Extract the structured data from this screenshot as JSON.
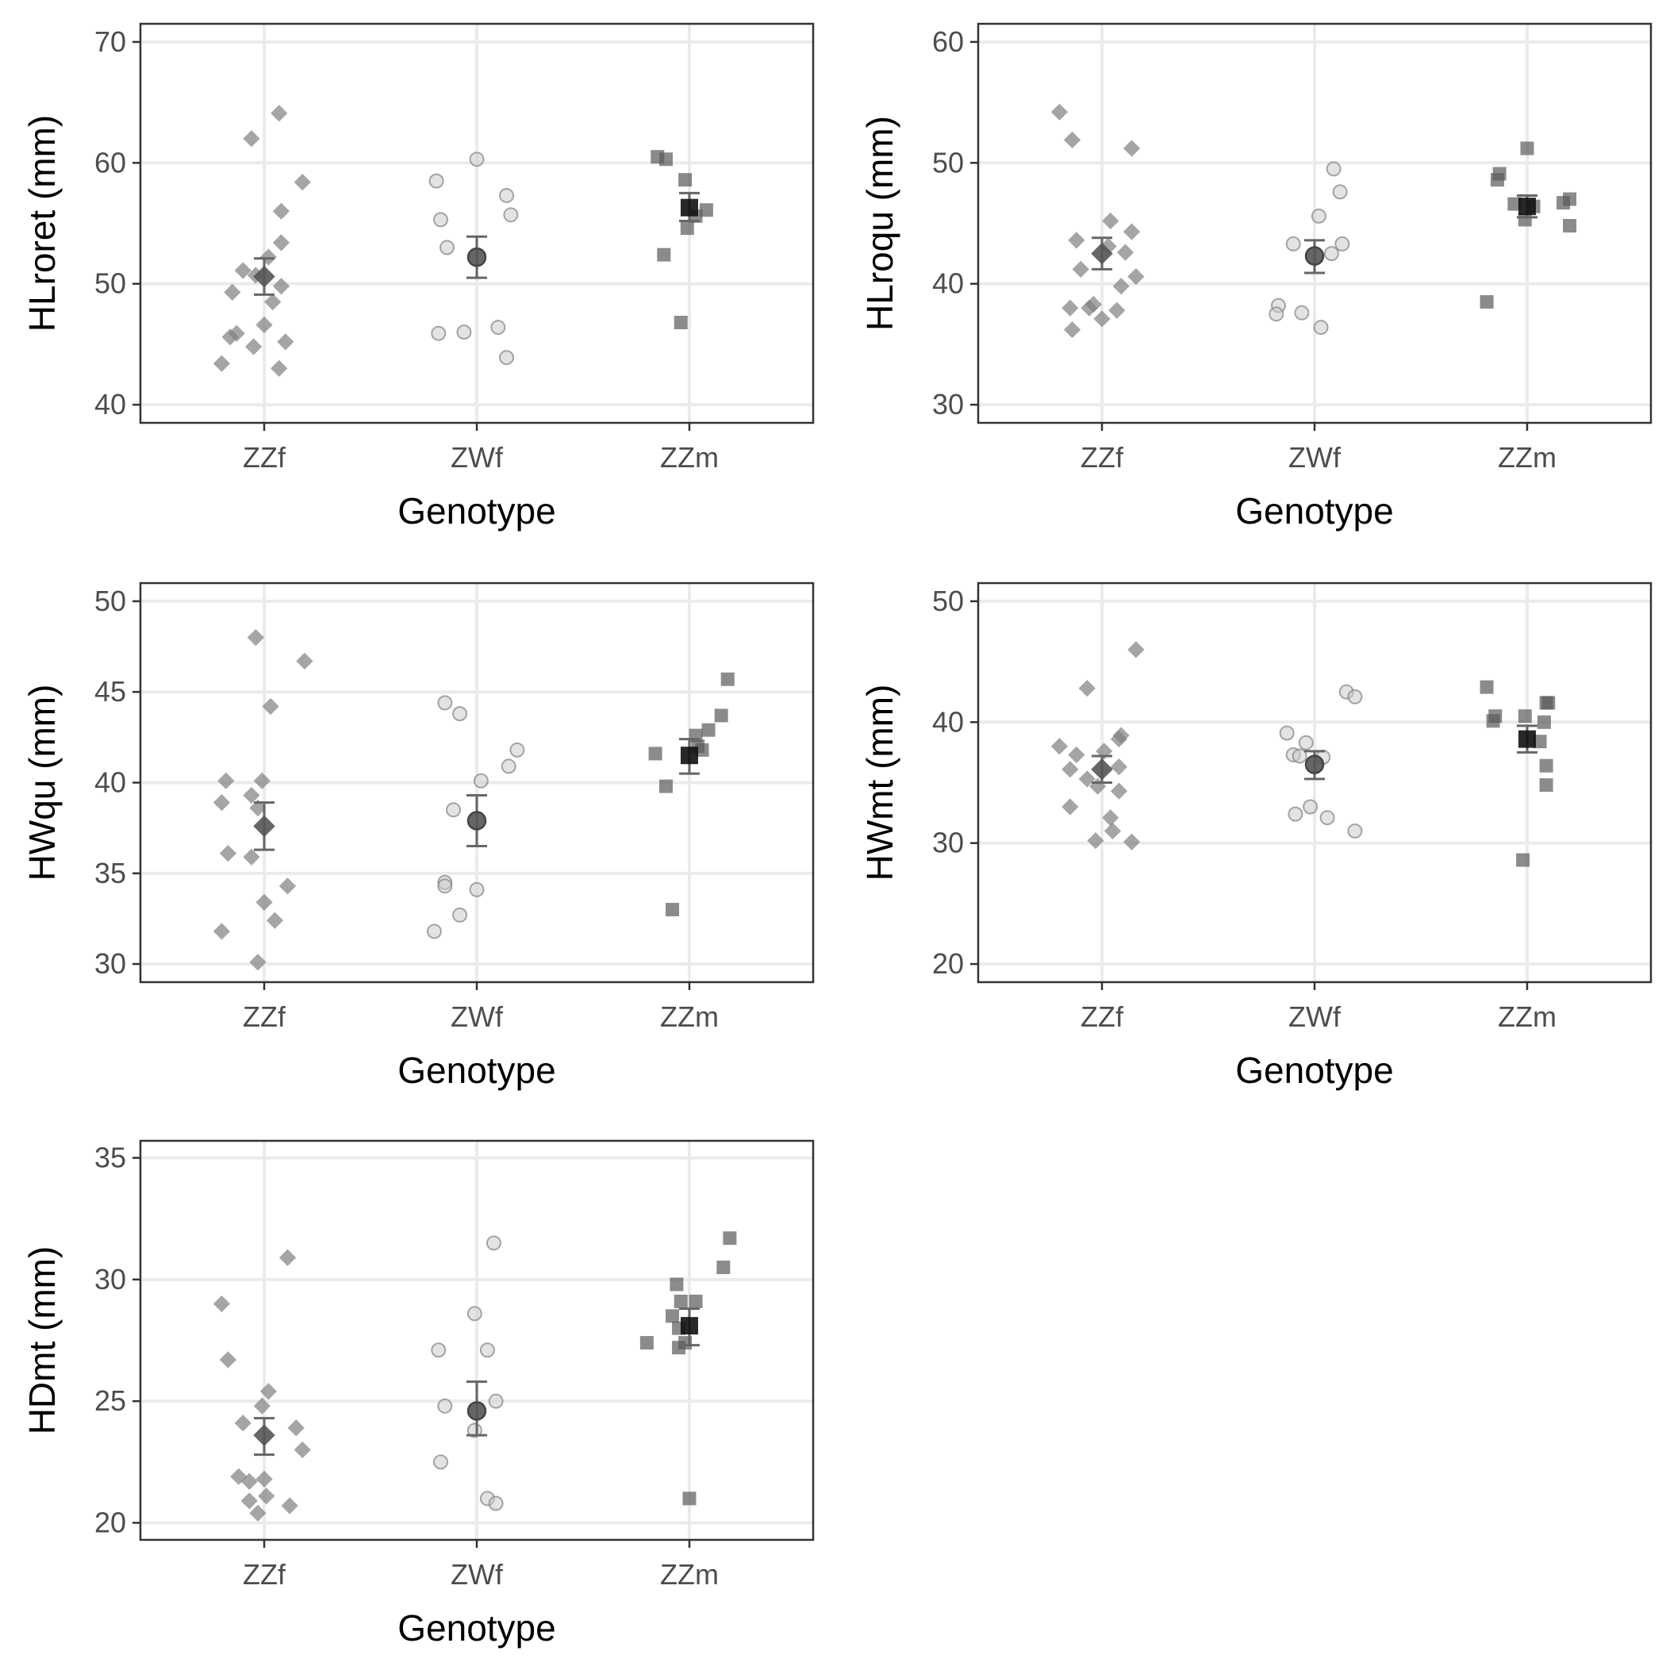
{
  "figure": {
    "colors": {
      "ZZf": "#7f7f7f",
      "ZWf": "#cccccc",
      "ZZm": "#5a5a5a",
      "mean": "#333333",
      "grid": "#ebebeb"
    },
    "markers": {
      "ZZf": "diamond",
      "ZWf": "circle",
      "ZZm": "square"
    }
  },
  "chart_data": [
    {
      "type": "scatter",
      "xlabel": "Genotype",
      "ylabel": "HLroret (mm)",
      "categories": [
        "ZZf",
        "ZWf",
        "ZZm"
      ],
      "ylim": [
        38.5,
        71.5
      ],
      "yticks": [
        40,
        50,
        60,
        70
      ],
      "grid": true,
      "legend": "none",
      "series": [
        {
          "category": "ZZf",
          "values": [
            64.1,
            62,
            58.4,
            56,
            53.4,
            52.2,
            51.1,
            50.7,
            49.8,
            49.3,
            48.5,
            46.6,
            45.9,
            45.6,
            45.2,
            44.8,
            43.4,
            43
          ],
          "offsets": [
            0.07,
            -0.06,
            0.18,
            0.08,
            0.08,
            0.02,
            -0.1,
            -0.04,
            0.08,
            -0.15,
            0.04,
            0,
            -0.13,
            -0.16,
            0.1,
            -0.05,
            -0.2,
            0.07
          ],
          "mean": 50.6,
          "err_low": 49.1,
          "err_high": 52.1
        },
        {
          "category": "ZWf",
          "values": [
            60.3,
            58.5,
            57.3,
            55.7,
            55.3,
            53,
            46.4,
            46,
            45.9,
            43.9
          ],
          "offsets": [
            0,
            -0.19,
            0.14,
            0.16,
            -0.17,
            -0.14,
            0.1,
            -0.06,
            -0.18,
            0.14
          ],
          "mean": 52.2,
          "err_low": 50.5,
          "err_high": 53.9
        },
        {
          "category": "ZZm",
          "values": [
            60.5,
            60.3,
            58.6,
            56.1,
            55.6,
            54.6,
            52.4,
            46.8
          ],
          "offsets": [
            -0.15,
            -0.11,
            -0.02,
            0.08,
            0.03,
            -0.01,
            -0.12,
            -0.04
          ],
          "mean": 56.3,
          "err_low": 55.2,
          "err_high": 57.5
        }
      ]
    },
    {
      "type": "scatter",
      "xlabel": "Genotype",
      "ylabel": "HLroqu (mm)",
      "categories": [
        "ZZf",
        "ZWf",
        "ZZm"
      ],
      "ylim": [
        28.5,
        61.5
      ],
      "yticks": [
        30,
        40,
        50,
        60
      ],
      "grid": true,
      "legend": "none",
      "series": [
        {
          "category": "ZZf",
          "values": [
            54.2,
            51.9,
            51.2,
            45.2,
            44.3,
            43.6,
            43.1,
            42.6,
            41.2,
            40.6,
            39.8,
            38.3,
            38,
            38,
            37.8,
            37.1,
            36.2
          ],
          "offsets": [
            -0.2,
            -0.14,
            0.14,
            0.04,
            0.14,
            -0.12,
            0.03,
            0.11,
            -0.1,
            0.16,
            0.09,
            -0.04,
            -0.15,
            -0.06,
            0.07,
            0,
            -0.14
          ],
          "mean": 42.5,
          "err_low": 41.2,
          "err_high": 43.8
        },
        {
          "category": "ZWf",
          "values": [
            49.5,
            47.6,
            45.6,
            43.3,
            43.3,
            42.5,
            38.2,
            37.6,
            37.5,
            36.4
          ],
          "offsets": [
            0.09,
            0.12,
            0.02,
            0.13,
            -0.1,
            0.08,
            -0.17,
            -0.06,
            -0.18,
            0.03
          ],
          "mean": 42.3,
          "err_low": 40.9,
          "err_high": 43.6
        },
        {
          "category": "ZZm",
          "values": [
            51.2,
            49.1,
            48.6,
            47,
            46.7,
            46.6,
            46.4,
            45.3,
            44.8,
            38.5
          ],
          "offsets": [
            0,
            -0.13,
            -0.14,
            0.2,
            0.17,
            -0.06,
            0.03,
            -0.01,
            0.2,
            -0.19
          ],
          "mean": 46.4,
          "err_low": 45.5,
          "err_high": 47.3
        }
      ]
    },
    {
      "type": "scatter",
      "xlabel": "Genotype",
      "ylabel": "HWqu (mm)",
      "categories": [
        "ZZf",
        "ZWf",
        "ZZm"
      ],
      "ylim": [
        29,
        51
      ],
      "yticks": [
        30,
        35,
        40,
        45,
        50
      ],
      "grid": true,
      "legend": "none",
      "series": [
        {
          "category": "ZZf",
          "values": [
            48,
            46.7,
            44.2,
            40.1,
            40.1,
            39.3,
            38.9,
            38.6,
            36.1,
            35.9,
            34.3,
            33.4,
            32.4,
            31.8,
            30.1
          ],
          "offsets": [
            -0.04,
            0.19,
            0.03,
            -0.18,
            -0.01,
            -0.06,
            -0.2,
            -0.03,
            -0.17,
            -0.06,
            0.11,
            0,
            0.05,
            -0.2,
            -0.03
          ],
          "mean": 37.6,
          "err_low": 36.3,
          "err_high": 38.9
        },
        {
          "category": "ZWf",
          "values": [
            44.4,
            43.8,
            41.8,
            40.9,
            40.1,
            38.5,
            34.5,
            34.3,
            34.1,
            32.7,
            31.8
          ],
          "offsets": [
            -0.15,
            -0.08,
            0.19,
            0.15,
            0.02,
            -0.11,
            -0.15,
            -0.15,
            0,
            -0.08,
            -0.2
          ],
          "mean": 37.9,
          "err_low": 36.5,
          "err_high": 39.3
        },
        {
          "category": "ZZm",
          "values": [
            45.7,
            43.7,
            42.9,
            42.6,
            42,
            41.8,
            41.6,
            39.8,
            33
          ],
          "offsets": [
            0.18,
            0.15,
            0.09,
            0.03,
            0.04,
            0.06,
            -0.16,
            -0.11,
            -0.08
          ],
          "mean": 41.5,
          "err_low": 40.5,
          "err_high": 42.4
        }
      ]
    },
    {
      "type": "scatter",
      "xlabel": "Genotype",
      "ylabel": "HWmt (mm)",
      "categories": [
        "ZZf",
        "ZWf",
        "ZZm"
      ],
      "ylim": [
        18.5,
        51.5
      ],
      "yticks": [
        20,
        30,
        40,
        50
      ],
      "grid": true,
      "legend": "none",
      "series": [
        {
          "category": "ZZf",
          "values": [
            46,
            42.8,
            38.9,
            38.6,
            38,
            37.6,
            37.3,
            36.3,
            36.1,
            35.3,
            34.7,
            34.3,
            33,
            32.1,
            31,
            30.2,
            30.1
          ],
          "offsets": [
            0.16,
            -0.07,
            0.09,
            0.08,
            -0.2,
            0.01,
            -0.12,
            0.08,
            -0.15,
            -0.07,
            -0.02,
            0.08,
            -0.15,
            0.04,
            0.05,
            -0.03,
            0.14
          ],
          "mean": 36.1,
          "err_low": 35,
          "err_high": 37.2
        },
        {
          "category": "ZWf",
          "values": [
            42.5,
            42.1,
            39.1,
            38.3,
            37.3,
            37.2,
            37.1,
            33,
            32.4,
            32.1,
            31
          ],
          "offsets": [
            0.15,
            0.19,
            -0.13,
            -0.04,
            -0.1,
            -0.07,
            0.04,
            -0.02,
            -0.09,
            0.06,
            0.19
          ],
          "mean": 36.5,
          "err_low": 35.3,
          "err_high": 37.6
        },
        {
          "category": "ZZm",
          "values": [
            42.9,
            41.6,
            41.6,
            40.5,
            40.5,
            40.1,
            40,
            38.4,
            36.4,
            34.8,
            28.6
          ],
          "offsets": [
            -0.19,
            0.1,
            0.09,
            -0.15,
            -0.01,
            -0.16,
            0.08,
            0.06,
            0.09,
            0.09,
            -0.02
          ],
          "mean": 38.6,
          "err_low": 37.5,
          "err_high": 39.7
        }
      ]
    },
    {
      "type": "scatter",
      "xlabel": "Genotype",
      "ylabel": "HDmt (mm)",
      "categories": [
        "ZZf",
        "ZWf",
        "ZZm"
      ],
      "ylim": [
        19.3,
        35.7
      ],
      "yticks": [
        20,
        25,
        30,
        35
      ],
      "grid": true,
      "legend": "none",
      "series": [
        {
          "category": "ZZf",
          "values": [
            30.9,
            29,
            26.7,
            25.4,
            24.8,
            24.1,
            23.9,
            23,
            21.9,
            21.8,
            21.7,
            21.1,
            20.9,
            20.7,
            20.4
          ],
          "offsets": [
            0.11,
            -0.2,
            -0.17,
            0.02,
            -0.01,
            -0.1,
            0.15,
            0.18,
            -0.12,
            0,
            -0.07,
            0.01,
            -0.07,
            0.12,
            -0.03
          ],
          "mean": 23.6,
          "err_low": 22.8,
          "err_high": 24.3
        },
        {
          "category": "ZWf",
          "values": [
            31.5,
            28.6,
            27.1,
            27.1,
            25,
            24.8,
            23.8,
            22.5,
            21,
            20.8
          ],
          "offsets": [
            0.08,
            -0.01,
            -0.18,
            0.05,
            0.09,
            -0.15,
            -0.01,
            -0.17,
            0.05,
            0.09
          ],
          "mean": 24.6,
          "err_low": 23.6,
          "err_high": 25.8
        },
        {
          "category": "ZZm",
          "values": [
            31.7,
            30.5,
            29.8,
            29.1,
            29.1,
            28.5,
            28,
            27.4,
            27.4,
            27.2,
            21
          ],
          "offsets": [
            0.19,
            0.16,
            -0.06,
            0.03,
            -0.04,
            -0.08,
            -0.05,
            -0.2,
            -0.02,
            -0.05,
            0
          ],
          "mean": 28.1,
          "err_low": 27.3,
          "err_high": 28.8
        }
      ]
    }
  ]
}
